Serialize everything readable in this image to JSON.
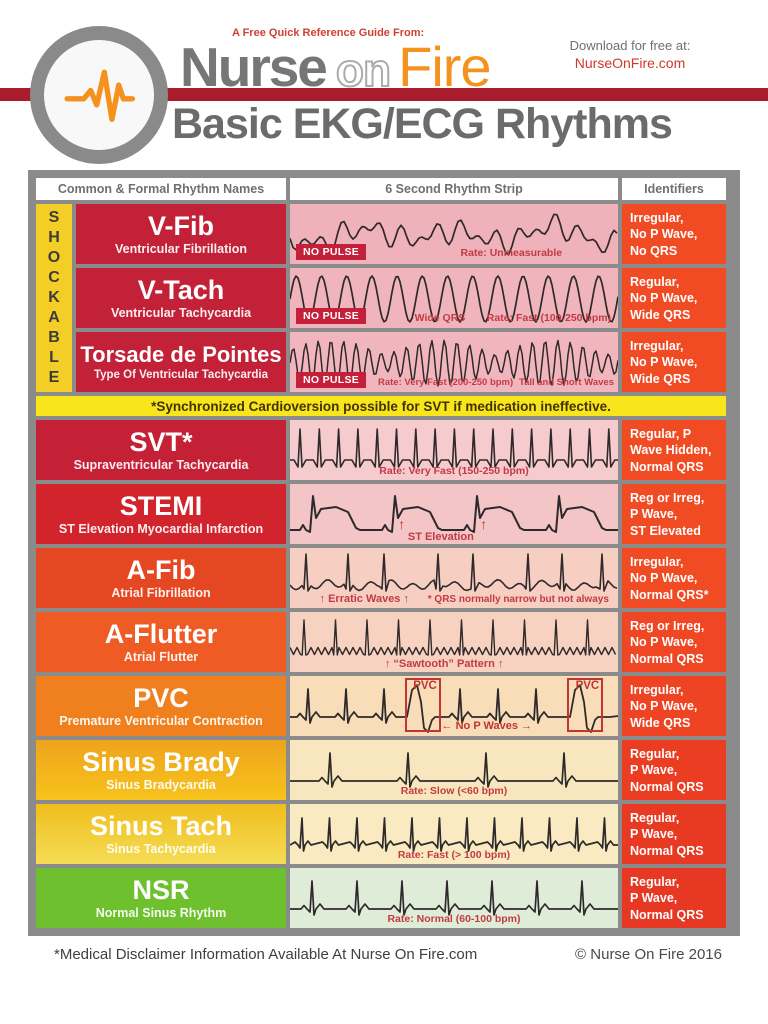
{
  "header": {
    "tagline": "A Free Quick Reference Guide From:",
    "brand_nurse": "Nurse",
    "brand_on": "on",
    "brand_fire": "Fire",
    "download_label": "Download for free at:",
    "download_url": "NurseOnFire.com",
    "title": "Basic EKG/ECG Rhythms",
    "accent_red": "#A81C2C",
    "accent_orange": "#F5921E"
  },
  "table": {
    "columns": [
      "Common & Formal Rhythm Names",
      "6 Second Rhythm Strip",
      "Identifiers"
    ],
    "shockable_label": "SHOCKABLE",
    "shockable_bg": "#F2CE27",
    "banner": "*Synchronized Cardioversion possible for SVT if medication ineffective.",
    "banner_bg": "#F8E51B",
    "rows": [
      {
        "name": "V-Fib",
        "subtitle": "Ventricular Fibrillation",
        "labels": {
          "badge": "NO PULSE",
          "rate": "Rate: Unmeasurable"
        },
        "identifier": [
          "Irregular,",
          "No P Wave,",
          "No QRS"
        ],
        "colors": {
          "name_bg": "#C32138",
          "strip_bg": "#EFB2BA",
          "ident_bg": "#F04B23"
        }
      },
      {
        "name": "V-Tach",
        "subtitle": "Ventricular Tachycardia",
        "labels": {
          "badge": "NO PULSE",
          "mid": "Wide QRS",
          "rate": "Rate: Fast (100-250 bpm)"
        },
        "identifier": [
          "Regular,",
          "No P Wave,",
          "Wide QRS"
        ],
        "colors": {
          "name_bg": "#C32138",
          "strip_bg": "#F0B4BC",
          "ident_bg": "#F04B23"
        }
      },
      {
        "name": "Torsade de Pointes",
        "subtitle": "Type Of Ventricular Tachycardia",
        "labels": {
          "badge": "NO PULSE",
          "rate": "Rate: Very Fast (200-250 bpm)",
          "right": "Tall and Short Waves"
        },
        "identifier": [
          "Irregular,",
          "No P Wave,",
          "Wide QRS"
        ],
        "colors": {
          "name_bg": "#C32138",
          "strip_bg": "#F1B6BD",
          "ident_bg": "#F04B23"
        }
      },
      {
        "name": "SVT*",
        "subtitle": "Supraventricular Tachycardia",
        "labels": {
          "rate": "Rate: Very Fast (150-250 bpm)"
        },
        "identifier": [
          "Regular, P",
          "Wave Hidden,",
          "Normal QRS"
        ],
        "colors": {
          "name_bg": "#C42136",
          "strip_bg": "#F5CBCE",
          "ident_bg": "#F04B23"
        }
      },
      {
        "name": "STEMI",
        "subtitle": "ST Elevation Myocardial Infarction",
        "labels": {
          "caption": "ST Elevation",
          "arrow": "↑"
        },
        "identifier": [
          "Reg or Irreg,",
          "P Wave,",
          "ST Elevated"
        ],
        "colors": {
          "name_bg": "#D1242D",
          "strip_bg": "#F3C5C6",
          "ident_bg": "#F04B23"
        }
      },
      {
        "name": "A-Fib",
        "subtitle": "Atrial Fibrillation",
        "labels": {
          "left": "↑ Erratic Waves ↑",
          "right": "* QRS normally narrow but not always"
        },
        "identifier": [
          "Irregular,",
          "No P Wave,",
          "Normal QRS*"
        ],
        "colors": {
          "name_bg": "#E64723",
          "strip_bg": "#F6CEC2",
          "ident_bg": "#F04B23"
        }
      },
      {
        "name": "A-Flutter",
        "subtitle": "Atrial Flutter",
        "labels": {
          "caption": "↑ “Sawtooth” Pattern ↑"
        },
        "identifier": [
          "Reg or Irreg,",
          "No P Wave,",
          "Normal QRS"
        ],
        "colors": {
          "name_bg": "#EE5B24",
          "strip_bg": "#F7D2C0",
          "ident_bg": "#EF4723"
        }
      },
      {
        "name": "PVC",
        "subtitle": "Premature Ventricular Contraction",
        "labels": {
          "box": "PVC",
          "caption": "← No P Waves →"
        },
        "identifier": [
          "Irregular,",
          "No P Wave,",
          "Wide QRS"
        ],
        "colors": {
          "name_bg": "#F0801D",
          "strip_bg": "#F8DDB8",
          "ident_bg": "#EE4423"
        }
      },
      {
        "name": "Sinus Brady",
        "subtitle": "Sinus Bradycardia",
        "labels": {
          "rate": "Rate: Slow (<60 bpm)"
        },
        "identifier": [
          "Regular,",
          "P Wave,",
          "Normal QRS"
        ],
        "colors": {
          "name_bg": "#EEA31B",
          "name_bg2": "#F7C31D",
          "strip_bg": "#F8E7BE",
          "ident_bg": "#EA3D22"
        }
      },
      {
        "name": "Sinus Tach",
        "subtitle": "Sinus Tachycardia",
        "labels": {
          "rate": "Rate: Fast (> 100 bpm)"
        },
        "identifier": [
          "Regular,",
          "P Wave,",
          "Normal QRS"
        ],
        "colors": {
          "name_bg": "#EFBE1D",
          "name_bg2": "#F5DC55",
          "strip_bg": "#F9EAC1",
          "ident_bg": "#E83A22"
        }
      },
      {
        "name": "NSR",
        "subtitle": "Normal Sinus Rhythm",
        "labels": {
          "rate": "Rate: Normal (60-100 bpm)"
        },
        "identifier": [
          "Regular,",
          "P Wave,",
          "Normal QRS"
        ],
        "colors": {
          "name_bg": "#6EC02F",
          "strip_bg": "#DFEDD8",
          "ident_bg": "#E63822"
        }
      }
    ]
  },
  "footer": {
    "disclaimer": "*Medical Disclaimer Information Available At Nurse On Fire.com",
    "copyright": "© Nurse On Fire 2016"
  }
}
